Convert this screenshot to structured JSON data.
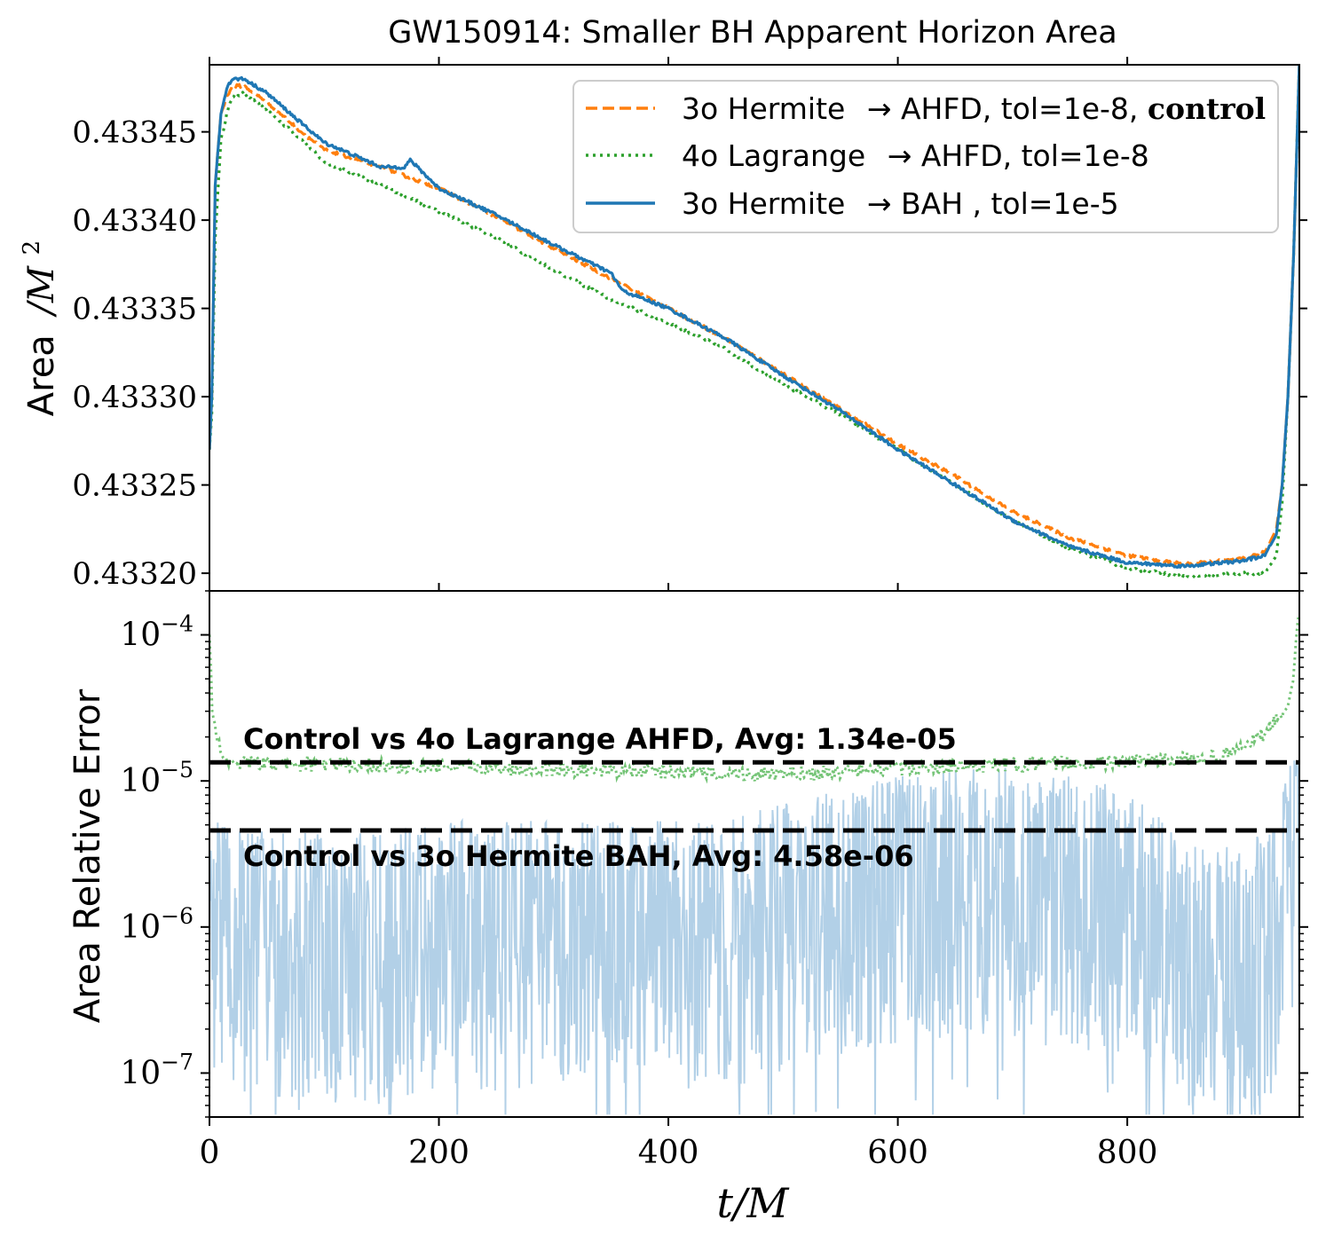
{
  "chart_data": [
    {
      "type": "line",
      "title": "GW150914: Smaller BH Apparent Horizon Area",
      "ylabel": "Area /M²",
      "ylabel_text": "Area",
      "ylabel_math": "/M",
      "ylabel_sup": "2",
      "xlim": [
        0,
        950
      ],
      "ylim": [
        0.43319,
        0.433488
      ],
      "ytick_values": [
        0.4332,
        0.43325,
        0.4333,
        0.43335,
        0.4334,
        0.43345
      ],
      "ytick_labels": [
        "0.43320",
        "0.43325",
        "0.43330",
        "0.43335",
        "0.43340",
        "0.43345"
      ],
      "legend_position": "top-right",
      "series": [
        {
          "name": "3o Hermite → AHFD, tol=1e-8, control",
          "legend_prefix": "3o Hermite",
          "legend_mid": "→ AHFD, tol=1e-8, ",
          "legend_bold": "control",
          "color": "#ff7f0e",
          "style": "dashed",
          "x": [
            0,
            2,
            5,
            10,
            15,
            20,
            30,
            50,
            80,
            100,
            150,
            200,
            250,
            300,
            350,
            400,
            450,
            500,
            550,
            600,
            650,
            700,
            750,
            800,
            850,
            900,
            920,
            930,
            935,
            940,
            945,
            950
          ],
          "y": [
            0.43327,
            0.4333,
            0.43342,
            0.43346,
            0.43347,
            0.433476,
            0.433476,
            0.433467,
            0.43345,
            0.43344,
            0.43343,
            0.433418,
            0.433402,
            0.433384,
            0.433367,
            0.43335,
            0.433333,
            0.433313,
            0.433293,
            0.433273,
            0.433255,
            0.433235,
            0.43322,
            0.43321,
            0.433205,
            0.433208,
            0.433212,
            0.433225,
            0.43325,
            0.4333,
            0.43338,
            0.43349
          ]
        },
        {
          "name": "4o Lagrange → AHFD, tol=1e-8",
          "legend_prefix": "4o Lagrange",
          "legend_mid": "→ AHFD, tol=1e-8",
          "legend_bold": "",
          "color": "#2ca02c",
          "style": "dotted",
          "x": [
            0,
            2,
            5,
            10,
            15,
            20,
            30,
            50,
            80,
            100,
            150,
            200,
            250,
            300,
            350,
            400,
            450,
            500,
            550,
            600,
            650,
            700,
            750,
            800,
            850,
            900,
            920,
            930,
            935,
            940,
            945,
            950
          ],
          "y": [
            0.43327,
            0.43329,
            0.43339,
            0.433445,
            0.43346,
            0.43347,
            0.433472,
            0.433462,
            0.433446,
            0.433433,
            0.43342,
            0.433405,
            0.43339,
            0.433372,
            0.433355,
            0.433342,
            0.433327,
            0.433307,
            0.43329,
            0.43327,
            0.43325,
            0.43323,
            0.433214,
            0.433203,
            0.433198,
            0.4332,
            0.4332,
            0.43321,
            0.43324,
            0.4333,
            0.43338,
            0.43349
          ]
        },
        {
          "name": "3o Hermite → BAH , tol=1e-5",
          "legend_prefix": "3o Hermite",
          "legend_mid": "→ BAH  , tol=1e-5",
          "legend_bold": "",
          "color": "#1f77b4",
          "style": "solid",
          "x": [
            0,
            2,
            5,
            10,
            15,
            20,
            30,
            50,
            80,
            100,
            150,
            170,
            175,
            200,
            250,
            300,
            350,
            360,
            400,
            450,
            500,
            550,
            600,
            650,
            700,
            750,
            800,
            850,
            900,
            920,
            930,
            935,
            940,
            945,
            950
          ],
          "y": [
            0.43327,
            0.4333,
            0.43342,
            0.43346,
            0.433475,
            0.43348,
            0.43348,
            0.433472,
            0.433455,
            0.433444,
            0.43343,
            0.43343,
            0.433434,
            0.433418,
            0.433403,
            0.433386,
            0.43337,
            0.43336,
            0.43335,
            0.433333,
            0.433312,
            0.433292,
            0.43327,
            0.43325,
            0.43323,
            0.433215,
            0.433206,
            0.433204,
            0.433207,
            0.43321,
            0.433222,
            0.43325,
            0.4333,
            0.43338,
            0.43349
          ]
        }
      ]
    },
    {
      "type": "line",
      "yscale": "log",
      "ylabel": "Area Relative Error",
      "xlabel": "t/M",
      "xlim": [
        0,
        950
      ],
      "ylim": [
        5e-08,
        0.0002
      ],
      "xticks": [
        0,
        200,
        400,
        600,
        800
      ],
      "xtick_labels": [
        "0",
        "200",
        "400",
        "600",
        "800"
      ],
      "ytick_values": [
        0.0001,
        1e-05,
        1e-06,
        1e-07
      ],
      "ytick_labels": [
        {
          "base": "10",
          "exp": "−4"
        },
        {
          "base": "10",
          "exp": "−5"
        },
        {
          "base": "10",
          "exp": "−6"
        },
        {
          "base": "10",
          "exp": "−7"
        }
      ],
      "series": [
        {
          "name": "Control vs 4o Lagrange AHFD",
          "color": "#2ca02c",
          "style": "dotted",
          "x": [
            0,
            2,
            10,
            50,
            100,
            200,
            300,
            400,
            500,
            550,
            600,
            700,
            800,
            850,
            880,
            900,
            920,
            930,
            940,
            945,
            950
          ],
          "y": [
            0.0001,
            3e-05,
            1.4e-05,
            1.3e-05,
            1.3e-05,
            1.25e-05,
            1.2e-05,
            1.15e-05,
            1.1e-05,
            1.15e-05,
            1.2e-05,
            1.3e-05,
            1.35e-05,
            1.4e-05,
            1.45e-05,
            1.7e-05,
            2.1e-05,
            2.6e-05,
            3.2e-05,
            5e-05,
            0.00015
          ]
        },
        {
          "name": "Control vs 3o Hermite BAH",
          "color": "#aecde6",
          "style": "solid",
          "x": [
            0,
            50,
            100,
            150,
            200,
            250,
            300,
            350,
            400,
            450,
            500,
            550,
            600,
            650,
            700,
            750,
            800,
            850,
            900,
            930,
            950
          ],
          "y": [
            3e-06,
            2.5e-06,
            2.5e-06,
            2.5e-06,
            3e-06,
            3e-06,
            3e-06,
            3e-06,
            3e-06,
            3e-06,
            4e-06,
            5e-06,
            6e-06,
            7e-06,
            7e-06,
            6e-06,
            5e-06,
            2e-06,
            2e-06,
            3e-06,
            1e-05
          ]
        }
      ],
      "hlines": [
        {
          "value": 1.34e-05,
          "label": "Control vs 4o Lagrange AHFD, Avg: 1.34e-05"
        },
        {
          "value": 4.58e-06,
          "label": "Control vs 3o Hermite BAH, Avg: 4.58e-06"
        }
      ],
      "xlabel_math": "t/M"
    }
  ]
}
